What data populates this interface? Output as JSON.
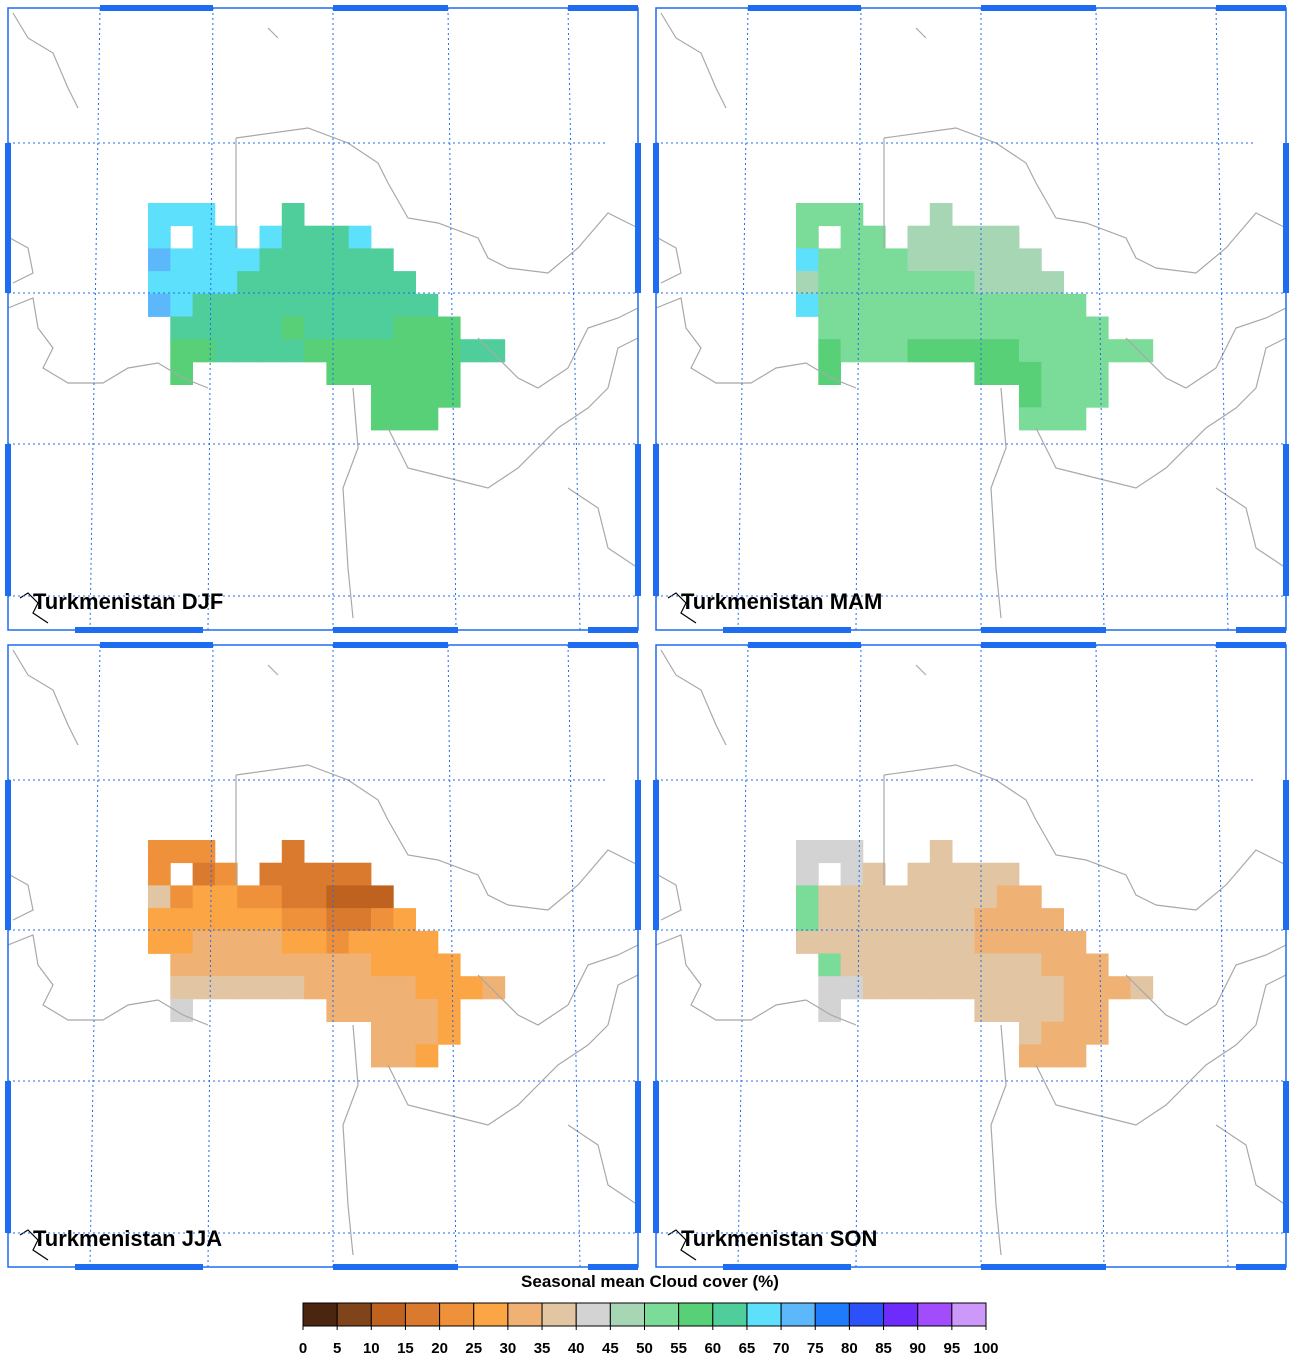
{
  "panels": [
    {
      "title": "Turkmenistan DJF",
      "cells": [
        [
          67,
          67,
          67,
          null,
          null,
          null,
          62,
          null,
          null,
          null,
          null,
          null,
          null,
          null,
          null,
          null
        ],
        [
          67,
          null,
          67,
          67,
          null,
          67,
          62,
          62,
          62,
          67,
          null,
          null,
          null,
          null,
          null,
          null
        ],
        [
          72,
          67,
          67,
          67,
          67,
          62,
          62,
          62,
          62,
          62,
          62,
          null,
          null,
          null,
          null,
          null
        ],
        [
          67,
          67,
          67,
          67,
          62,
          62,
          62,
          62,
          62,
          62,
          62,
          62,
          null,
          null,
          null,
          null
        ],
        [
          72,
          67,
          62,
          62,
          62,
          62,
          62,
          62,
          62,
          62,
          62,
          62,
          62,
          null,
          null,
          null
        ],
        [
          null,
          62,
          62,
          62,
          62,
          62,
          57,
          62,
          62,
          62,
          62,
          57,
          57,
          57,
          null,
          null
        ],
        [
          null,
          57,
          57,
          62,
          62,
          62,
          62,
          57,
          57,
          57,
          57,
          57,
          57,
          57,
          62,
          62
        ],
        [
          null,
          57,
          null,
          null,
          null,
          null,
          null,
          null,
          57,
          57,
          57,
          57,
          57,
          57,
          null,
          null
        ],
        [
          null,
          null,
          null,
          null,
          null,
          null,
          null,
          null,
          null,
          null,
          57,
          57,
          57,
          57,
          null,
          null
        ],
        [
          null,
          null,
          null,
          null,
          null,
          null,
          null,
          null,
          null,
          null,
          57,
          57,
          57,
          null,
          null,
          null
        ]
      ]
    },
    {
      "title": "Turkmenistan MAM",
      "cells": [
        [
          52,
          52,
          52,
          null,
          null,
          null,
          47,
          null,
          null,
          null,
          null,
          null,
          null,
          null,
          null,
          null
        ],
        [
          52,
          null,
          52,
          52,
          null,
          47,
          47,
          47,
          47,
          47,
          null,
          null,
          null,
          null,
          null,
          null
        ],
        [
          67,
          52,
          52,
          52,
          52,
          47,
          47,
          47,
          47,
          47,
          47,
          null,
          null,
          null,
          null,
          null
        ],
        [
          47,
          52,
          52,
          52,
          52,
          52,
          52,
          52,
          47,
          47,
          47,
          47,
          null,
          null,
          null,
          null
        ],
        [
          67,
          52,
          52,
          52,
          52,
          52,
          52,
          52,
          52,
          52,
          52,
          52,
          52,
          null,
          null,
          null
        ],
        [
          null,
          52,
          52,
          52,
          52,
          52,
          52,
          52,
          52,
          52,
          52,
          52,
          52,
          52,
          null,
          null
        ],
        [
          null,
          57,
          52,
          52,
          52,
          57,
          57,
          57,
          57,
          57,
          52,
          52,
          52,
          52,
          52,
          52
        ],
        [
          null,
          57,
          null,
          null,
          null,
          null,
          null,
          null,
          57,
          57,
          57,
          52,
          52,
          52,
          null,
          null
        ],
        [
          null,
          null,
          null,
          null,
          null,
          null,
          null,
          null,
          null,
          null,
          57,
          52,
          52,
          52,
          null,
          null
        ],
        [
          null,
          null,
          null,
          null,
          null,
          null,
          null,
          null,
          null,
          null,
          52,
          52,
          52,
          null,
          null,
          null
        ]
      ]
    },
    {
      "title": "Turkmenistan JJA",
      "cells": [
        [
          22,
          22,
          22,
          null,
          null,
          null,
          17,
          null,
          null,
          null,
          null,
          null,
          null,
          null,
          null,
          null
        ],
        [
          22,
          null,
          17,
          22,
          null,
          17,
          17,
          17,
          17,
          17,
          null,
          null,
          null,
          null,
          null,
          null
        ],
        [
          37,
          22,
          27,
          27,
          22,
          22,
          17,
          17,
          12,
          12,
          12,
          null,
          null,
          null,
          null,
          null
        ],
        [
          27,
          27,
          27,
          27,
          27,
          27,
          22,
          22,
          17,
          17,
          22,
          27,
          null,
          null,
          null,
          null
        ],
        [
          27,
          27,
          32,
          32,
          32,
          32,
          27,
          27,
          22,
          27,
          27,
          27,
          27,
          null,
          null,
          null
        ],
        [
          null,
          32,
          32,
          32,
          32,
          32,
          32,
          32,
          32,
          32,
          27,
          27,
          27,
          27,
          null,
          null
        ],
        [
          null,
          37,
          37,
          37,
          37,
          37,
          37,
          32,
          32,
          32,
          32,
          32,
          27,
          27,
          27,
          32
        ],
        [
          null,
          42,
          null,
          null,
          null,
          null,
          null,
          null,
          32,
          32,
          32,
          32,
          32,
          27,
          null,
          null
        ],
        [
          null,
          null,
          null,
          null,
          null,
          null,
          null,
          null,
          null,
          null,
          32,
          32,
          32,
          27,
          null,
          null
        ],
        [
          null,
          null,
          null,
          null,
          null,
          null,
          null,
          null,
          null,
          null,
          32,
          32,
          27,
          null,
          null,
          null
        ]
      ]
    },
    {
      "title": "Turkmenistan SON",
      "cells": [
        [
          42,
          42,
          42,
          null,
          null,
          null,
          37,
          null,
          null,
          null,
          null,
          null,
          null,
          null,
          null,
          null
        ],
        [
          42,
          null,
          42,
          37,
          null,
          37,
          37,
          37,
          37,
          37,
          null,
          null,
          null,
          null,
          null,
          null
        ],
        [
          52,
          37,
          37,
          37,
          37,
          37,
          37,
          37,
          37,
          32,
          32,
          null,
          null,
          null,
          null,
          null
        ],
        [
          52,
          37,
          37,
          37,
          37,
          37,
          37,
          37,
          32,
          32,
          32,
          32,
          null,
          null,
          null,
          null
        ],
        [
          37,
          37,
          37,
          37,
          37,
          37,
          37,
          37,
          32,
          32,
          32,
          32,
          32,
          null,
          null,
          null
        ],
        [
          null,
          52,
          37,
          37,
          37,
          37,
          37,
          37,
          37,
          37,
          37,
          32,
          32,
          32,
          null,
          null
        ],
        [
          null,
          42,
          42,
          37,
          37,
          37,
          37,
          37,
          37,
          37,
          37,
          37,
          32,
          32,
          32,
          37
        ],
        [
          null,
          42,
          null,
          null,
          null,
          null,
          null,
          null,
          37,
          37,
          37,
          37,
          32,
          32,
          null,
          null
        ],
        [
          null,
          null,
          null,
          null,
          null,
          null,
          null,
          null,
          null,
          null,
          37,
          32,
          32,
          32,
          null,
          null
        ],
        [
          null,
          null,
          null,
          null,
          null,
          null,
          null,
          null,
          null,
          null,
          32,
          32,
          32,
          null,
          null,
          null
        ]
      ]
    }
  ],
  "colorbar": {
    "title": "Seasonal mean Cloud cover (%)",
    "ticks": [
      0,
      5,
      10,
      15,
      20,
      25,
      30,
      35,
      40,
      45,
      50,
      55,
      60,
      65,
      70,
      75,
      80,
      85,
      90,
      95,
      100
    ],
    "colors": [
      "#4a2510",
      "#7f4419",
      "#c0621f",
      "#d97a2e",
      "#ee913a",
      "#fba544",
      "#efb274",
      "#e2c6a4",
      "#d3d3d3",
      "#a7d6b4",
      "#7bdb98",
      "#57d077",
      "#4fce9c",
      "#5ce0fb",
      "#5cb7fb",
      "#1e7cfb",
      "#2c51fb",
      "#6d2cfb",
      "#a24cfb",
      "#cc99fb"
    ]
  }
}
